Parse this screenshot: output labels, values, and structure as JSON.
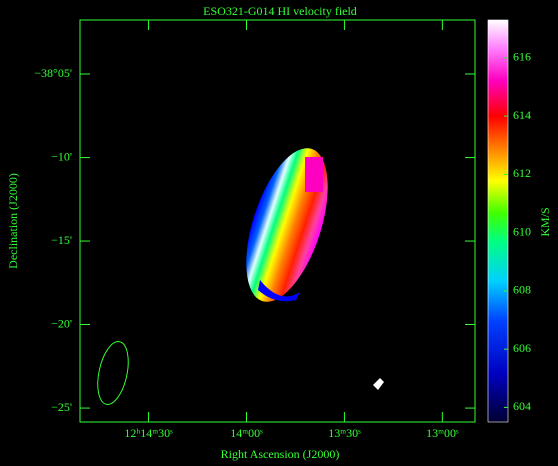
{
  "chart_data": {
    "type": "image",
    "title": "ESO321-G014  HI velocity field",
    "x_label": "Right Ascension (J2000)",
    "y_label": "Declination (J2000)",
    "xlim": [
      891,
      770
    ],
    "xticks": [
      {
        "value": 870,
        "label": "12ʰ14ᵐ30ˢ"
      },
      {
        "value": 840,
        "label": "14ᵐ00ˢ"
      },
      {
        "value": 810,
        "label": "13ᵐ30ˢ"
      },
      {
        "value": 780,
        "label": "13ᵐ00ˢ"
      }
    ],
    "ylim": [
      -38.4306,
      -38.0294
    ],
    "yticks": [
      {
        "value": -38.0833,
        "label": "−38°05'"
      },
      {
        "value": -38.1667,
        "label": "−10'"
      },
      {
        "value": -38.25,
        "label": "−15'"
      },
      {
        "value": -38.3333,
        "label": "−20'"
      },
      {
        "value": -38.4167,
        "label": "−25'"
      }
    ],
    "colorbar": {
      "label": "KM/S",
      "lim": [
        603.5,
        617.3
      ],
      "ticks": [
        604,
        606,
        608,
        610,
        612,
        614,
        616
      ]
    }
  }
}
